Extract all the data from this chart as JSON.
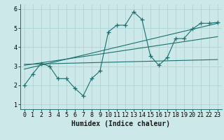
{
  "xlabel": "Humidex (Indice chaleur)",
  "bg_color": "#cce8e8",
  "line_color": "#1a7070",
  "grid_color": "#b0d8d8",
  "xlim": [
    -0.5,
    23.5
  ],
  "ylim": [
    0.75,
    6.25
  ],
  "xticks": [
    0,
    1,
    2,
    3,
    4,
    5,
    6,
    7,
    8,
    9,
    10,
    11,
    12,
    13,
    14,
    15,
    16,
    17,
    18,
    19,
    20,
    21,
    22,
    23
  ],
  "yticks": [
    1,
    2,
    3,
    4,
    5,
    6
  ],
  "line1_x": [
    0,
    1,
    2,
    3,
    4,
    5,
    6,
    7,
    8,
    9,
    10,
    11,
    12,
    13,
    14,
    15,
    16,
    17,
    18,
    19,
    20,
    21,
    22,
    23
  ],
  "line1_y": [
    2.0,
    2.6,
    3.15,
    3.0,
    2.35,
    2.35,
    1.85,
    1.45,
    2.35,
    2.75,
    4.8,
    5.15,
    5.15,
    5.85,
    5.45,
    3.55,
    3.05,
    3.45,
    4.45,
    4.45,
    4.95,
    5.25,
    5.25,
    5.3
  ],
  "line2_x": [
    0,
    23
  ],
  "line2_y": [
    3.1,
    3.35
  ],
  "line3_x": [
    0,
    23
  ],
  "line3_y": [
    2.85,
    5.25
  ],
  "line4_x": [
    0,
    23
  ],
  "line4_y": [
    3.05,
    4.55
  ]
}
